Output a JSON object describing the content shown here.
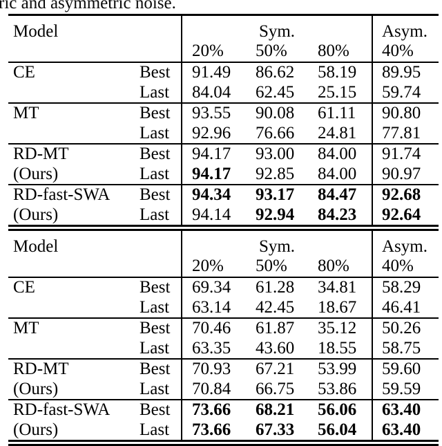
{
  "colors": {
    "text": "#000000",
    "background": "#ffffff",
    "rule": "#000000"
  },
  "caption_fragment": "ric and asymmetric noise.",
  "tables": [
    {
      "header": {
        "model_label": "Model",
        "sym_label": "Sym.",
        "asym_label": "Asym.",
        "levels": [
          "20%",
          "50%",
          "80%",
          "40%"
        ]
      },
      "groups": [
        {
          "rows": [
            {
              "model": "CE",
              "phase": "Best",
              "values": [
                "91.49",
                "86.62",
                "58.19",
                "89.95"
              ],
              "bold": [
                false,
                false,
                false,
                false
              ]
            },
            {
              "model": "",
              "phase": "Last",
              "values": [
                "84.04",
                "62.45",
                "25.15",
                "59.74"
              ],
              "bold": [
                false,
                false,
                false,
                false
              ]
            }
          ]
        },
        {
          "rows": [
            {
              "model": "MT",
              "phase": "Best",
              "values": [
                "93.55",
                "90.08",
                "61.11",
                "90.80"
              ],
              "bold": [
                false,
                false,
                false,
                false
              ]
            },
            {
              "model": "",
              "phase": "Last",
              "values": [
                "92.96",
                "76.66",
                "24.81",
                "77.81"
              ],
              "bold": [
                false,
                false,
                false,
                false
              ]
            }
          ]
        },
        {
          "rows": [
            {
              "model": "RD-MT",
              "phase": "Best",
              "values": [
                "94.17",
                "93.00",
                "84.00",
                "91.74"
              ],
              "bold": [
                false,
                false,
                false,
                false
              ]
            },
            {
              "model": "(Ours)",
              "phase": "Last",
              "values": [
                "94.17",
                "92.85",
                "84.00",
                "90.97"
              ],
              "bold": [
                true,
                false,
                false,
                false
              ]
            }
          ]
        },
        {
          "rows": [
            {
              "model": "RD-fast-SWA",
              "phase": "Best",
              "values": [
                "94.34",
                "93.17",
                "84.47",
                "92.68"
              ],
              "bold": [
                true,
                true,
                true,
                true
              ]
            },
            {
              "model": "(Ours)",
              "phase": "Last",
              "values": [
                "94.14",
                "92.94",
                "84.23",
                "92.64"
              ],
              "bold": [
                false,
                true,
                true,
                true
              ]
            }
          ]
        }
      ]
    },
    {
      "header": {
        "model_label": "Model",
        "sym_label": "Sym.",
        "asym_label": "Asym.",
        "levels": [
          "20%",
          "50%",
          "80%",
          "40%"
        ]
      },
      "groups": [
        {
          "rows": [
            {
              "model": "CE",
              "phase": "Best",
              "values": [
                "69.34",
                "61.28",
                "34.81",
                "58.29"
              ],
              "bold": [
                false,
                false,
                false,
                false
              ]
            },
            {
              "model": "",
              "phase": "Last",
              "values": [
                "63.14",
                "42.45",
                "18.67",
                "46.41"
              ],
              "bold": [
                false,
                false,
                false,
                false
              ]
            }
          ]
        },
        {
          "rows": [
            {
              "model": "MT",
              "phase": "Best",
              "values": [
                "70.46",
                "61.87",
                "35.12",
                "50.26"
              ],
              "bold": [
                false,
                false,
                false,
                false
              ]
            },
            {
              "model": "",
              "phase": "Last",
              "values": [
                "63.35",
                "43.60",
                "18.55",
                "58.75"
              ],
              "bold": [
                false,
                false,
                false,
                false
              ]
            }
          ]
        },
        {
          "rows": [
            {
              "model": "RD-MT",
              "phase": "Best",
              "values": [
                "70.93",
                "67.21",
                "53.99",
                "59.60"
              ],
              "bold": [
                false,
                false,
                false,
                false
              ]
            },
            {
              "model": "(Ours)",
              "phase": "Last",
              "values": [
                "70.84",
                "66.75",
                "53.86",
                "59.59"
              ],
              "bold": [
                false,
                false,
                false,
                false
              ]
            }
          ]
        },
        {
          "rows": [
            {
              "model": "RD-fast-SWA",
              "phase": "Best",
              "values": [
                "73.66",
                "68.21",
                "56.06",
                "63.40"
              ],
              "bold": [
                true,
                true,
                true,
                true
              ]
            },
            {
              "model": "(Ours)",
              "phase": "Last",
              "values": [
                "73.66",
                "67.33",
                "56.04",
                "63.40"
              ],
              "bold": [
                true,
                true,
                true,
                true
              ]
            }
          ]
        }
      ]
    }
  ]
}
